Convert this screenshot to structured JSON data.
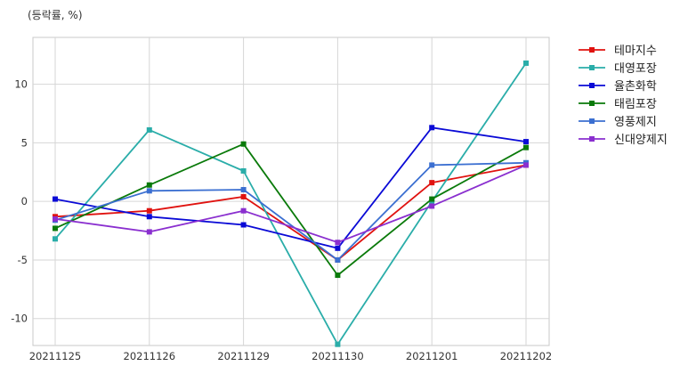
{
  "unit_label": "(등락률, %)",
  "chart_data": {
    "type": "line",
    "ylabel": "(등락률, %)",
    "x": [
      "20211125",
      "20211126",
      "20211129",
      "20211130",
      "20211201",
      "20211202"
    ],
    "ylim": [
      -12.3,
      14.0
    ],
    "yticks": [
      -10,
      -5,
      0,
      5,
      10
    ],
    "grid": true,
    "legend_position": "top-right-outside",
    "series": [
      {
        "name": "테마지수",
        "color": "#e0120f",
        "values": [
          -1.3,
          -0.8,
          0.4,
          -5.0,
          1.6,
          3.1
        ]
      },
      {
        "name": "대영포장",
        "color": "#2aada9",
        "values": [
          -3.2,
          6.1,
          2.6,
          -12.2,
          0.0,
          11.8
        ]
      },
      {
        "name": "율촌화학",
        "color": "#0a0ad6",
        "values": [
          0.2,
          -1.3,
          -2.0,
          -4.0,
          6.3,
          5.1
        ]
      },
      {
        "name": "태림포장",
        "color": "#0a7a0a",
        "values": [
          -2.3,
          1.4,
          4.9,
          -6.3,
          0.2,
          4.6
        ]
      },
      {
        "name": "영풍제지",
        "color": "#3b6fd1",
        "values": [
          -1.6,
          0.9,
          1.0,
          -5.0,
          3.1,
          3.3
        ]
      },
      {
        "name": "신대양제지",
        "color": "#8a2fcf",
        "values": [
          -1.5,
          -2.6,
          -0.8,
          -3.5,
          -0.4,
          3.1
        ]
      }
    ]
  }
}
